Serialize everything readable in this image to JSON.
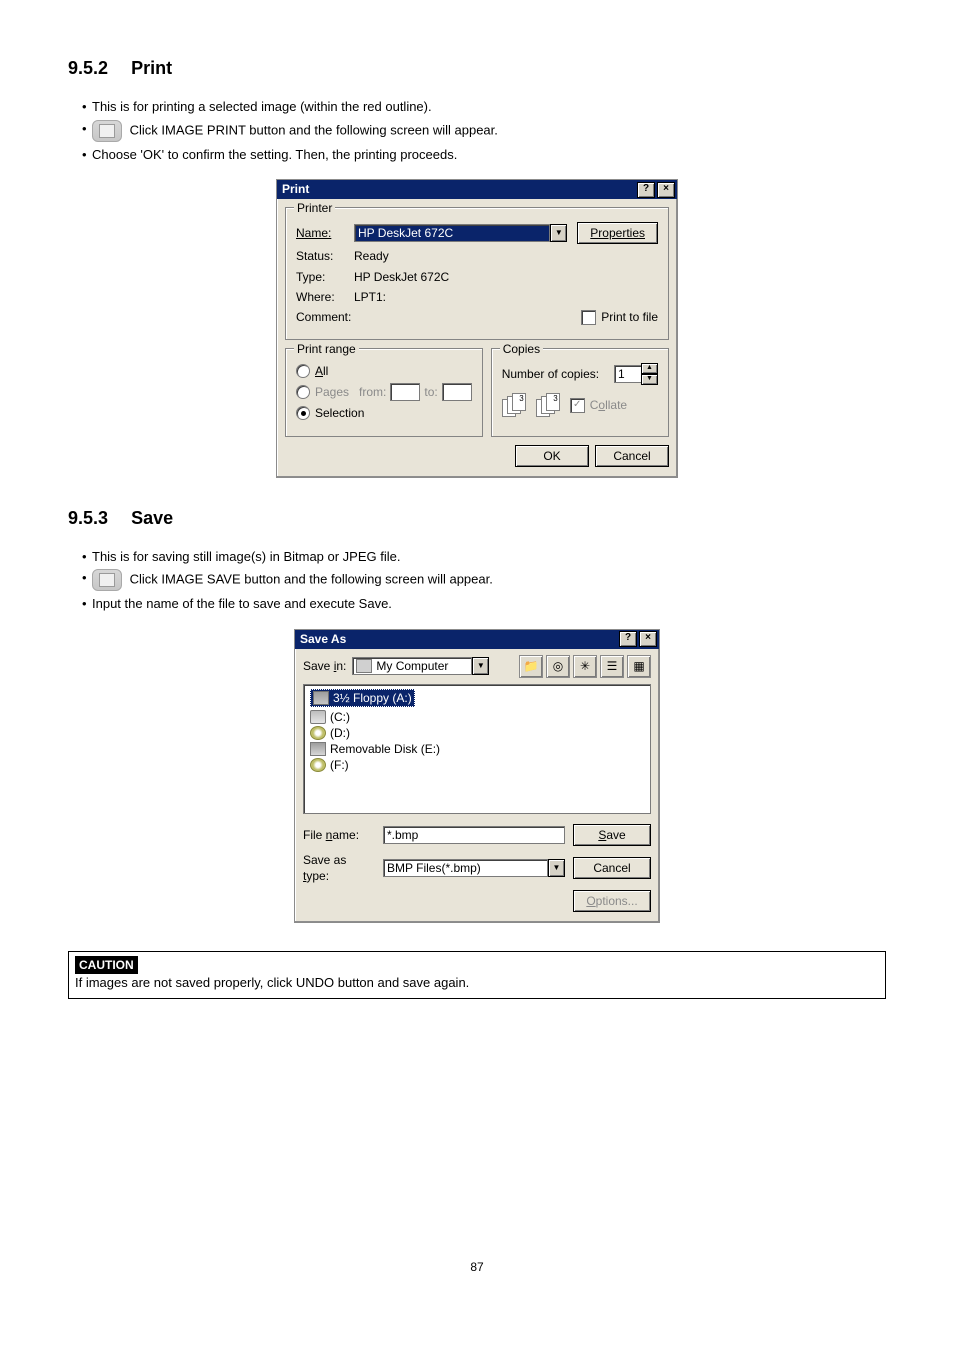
{
  "page_number": "87",
  "sections": {
    "print": {
      "number": "9.5.2",
      "title": "Print"
    },
    "save": {
      "number": "9.5.3",
      "title": "Save"
    }
  },
  "print_text": {
    "b1": "This is for printing a selected image (within the red outline).",
    "b2": "Click IMAGE PRINT button and the following screen will appear.",
    "b3": "Choose 'OK' to confirm the setting. Then, the printing proceeds."
  },
  "save_text": {
    "b1": "This is for saving still image(s) in Bitmap or JPEG file.",
    "b2": "Click IMAGE SAVE button and the following screen will appear.",
    "b3": "Input the name of the file to save and execute Save."
  },
  "caution": {
    "tag": "CAUTION",
    "text": "If images are not saved properly, click UNDO button and save again."
  },
  "print_dialog": {
    "title": "Print",
    "printer_group": "Printer",
    "name_label": "Name:",
    "name_value": "HP DeskJet 672C",
    "properties_btn": "Properties",
    "status_label": "Status:",
    "status_value": "Ready",
    "type_label": "Type:",
    "type_value": "HP DeskJet 672C",
    "where_label": "Where:",
    "where_value": "LPT1:",
    "comment_label": "Comment:",
    "print_to_file": "Print to file",
    "range_group": "Print range",
    "range_all": "All",
    "range_pages": "Pages",
    "range_from": "from:",
    "range_to": "to:",
    "range_selection": "Selection",
    "copies_group": "Copies",
    "copies_label": "Number of copies:",
    "copies_value": "1",
    "collate": "Collate",
    "ok": "OK",
    "cancel": "Cancel"
  },
  "save_dialog": {
    "title": "Save As",
    "savein_label": "Save in:",
    "savein_value": "My Computer",
    "drives": [
      {
        "icon": "floppy",
        "label": "3½ Floppy (A:)",
        "selected": true
      },
      {
        "icon": "hdd",
        "label": "(C:)"
      },
      {
        "icon": "cd",
        "label": "(D:)"
      },
      {
        "icon": "rem",
        "label": "Removable Disk (E:)"
      },
      {
        "icon": "cd",
        "label": "(F:)"
      }
    ],
    "filename_label": "File name:",
    "filename_value": "*.bmp",
    "saveastype_label": "Save as type:",
    "saveastype_value": "BMP Files(*.bmp)",
    "save_btn": "Save",
    "cancel_btn": "Cancel",
    "options_btn": "Options..."
  }
}
